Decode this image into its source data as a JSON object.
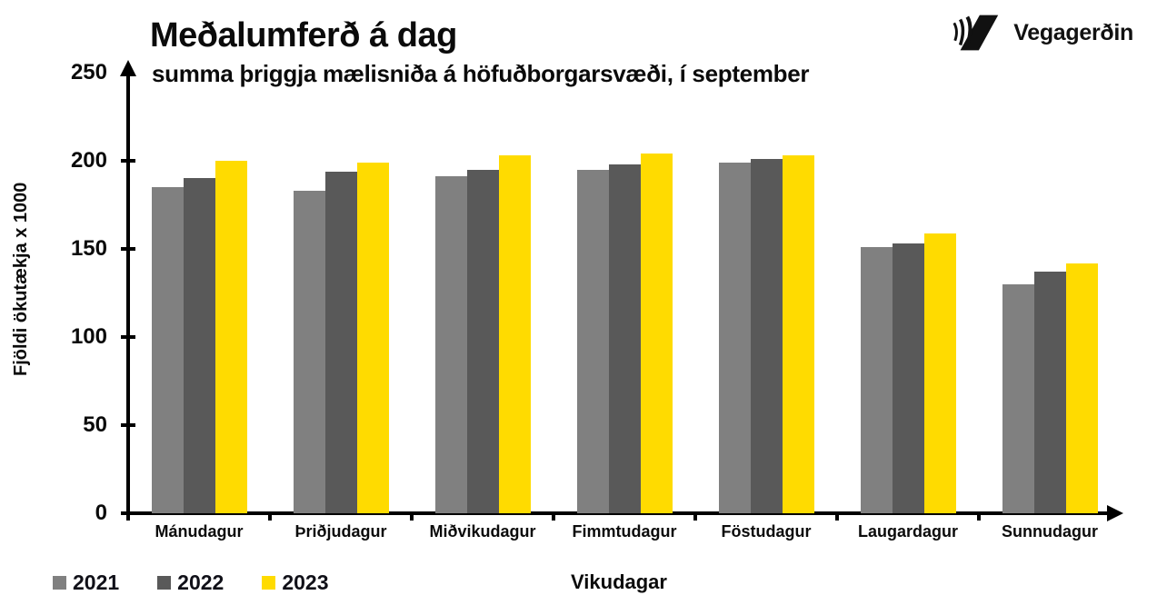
{
  "header": {
    "title": "Meðalumferð á dag",
    "subtitle": "summa þriggja mælisniða á höfuðborgarsvæði, í september",
    "logo_text": "Vegagerðin"
  },
  "chart_data": {
    "type": "bar",
    "title": "Meðalumferð á dag",
    "subtitle": "summa þriggja mælisniða á höfuðborgarsvæði, í september",
    "categories": [
      "Mánudagur",
      "Þriðjudagur",
      "Miðvikudagur",
      "Fimmtudagur",
      "Föstudagur",
      "Laugardagur",
      "Sunnudagur"
    ],
    "series": [
      {
        "name": "2021",
        "color": "#808080",
        "values": [
          185,
          183,
          191,
          195,
          199,
          151,
          130
        ]
      },
      {
        "name": "2022",
        "color": "#595959",
        "values": [
          190,
          194,
          195,
          198,
          201,
          153,
          137
        ]
      },
      {
        "name": "2023",
        "color": "#FFDB00",
        "values": [
          200,
          199,
          203,
          204,
          203,
          159,
          142
        ]
      }
    ],
    "xlabel": "Vikudagar",
    "ylabel": "Fjöldi ökutækja x 1000",
    "ylim": [
      0,
      250
    ],
    "yticks": [
      0,
      50,
      100,
      150,
      200,
      250
    ],
    "grid": false,
    "legend_position": "bottom-left",
    "axis_color": "#000000"
  }
}
